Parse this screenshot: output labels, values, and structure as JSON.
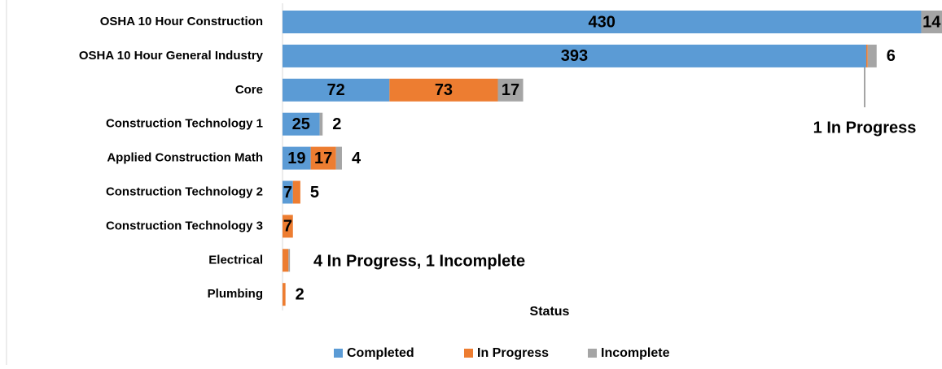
{
  "chart_data": {
    "type": "stacked-bar-horizontal",
    "x_label": "Status",
    "categories": [
      "OSHA 10 Hour Construction",
      "OSHA 10 Hour General Industry",
      "Core",
      "Construction Technology 1",
      "Applied Construction Math",
      "Construction Technology 2",
      "Construction Technology 3",
      "Electrical",
      "Plumbing"
    ],
    "series": [
      {
        "name": "Completed",
        "color": "#5b9bd5",
        "values": [
          430,
          393,
          72,
          25,
          19,
          7,
          0,
          0,
          0
        ],
        "value_labels": [
          "430",
          "393",
          "72",
          "25",
          "19",
          "7",
          null,
          null,
          null
        ]
      },
      {
        "name": "In Progress",
        "color": "#ed7d31",
        "values": [
          0,
          1,
          73,
          0,
          17,
          5,
          7,
          4,
          2
        ],
        "value_labels": [
          null,
          null,
          "73",
          null,
          "17",
          "5",
          "7",
          null,
          "2"
        ]
      },
      {
        "name": "Incomplete",
        "color": "#a5a5a5",
        "values": [
          14,
          6,
          17,
          2,
          4,
          0,
          0,
          1,
          0
        ],
        "value_labels": [
          "14",
          "6",
          "17",
          "2",
          "4",
          null,
          null,
          null,
          null
        ]
      }
    ],
    "annotations": [
      "1 In Progress",
      "4 In Progress, 1 Incomplete"
    ],
    "legend": "bottom"
  }
}
